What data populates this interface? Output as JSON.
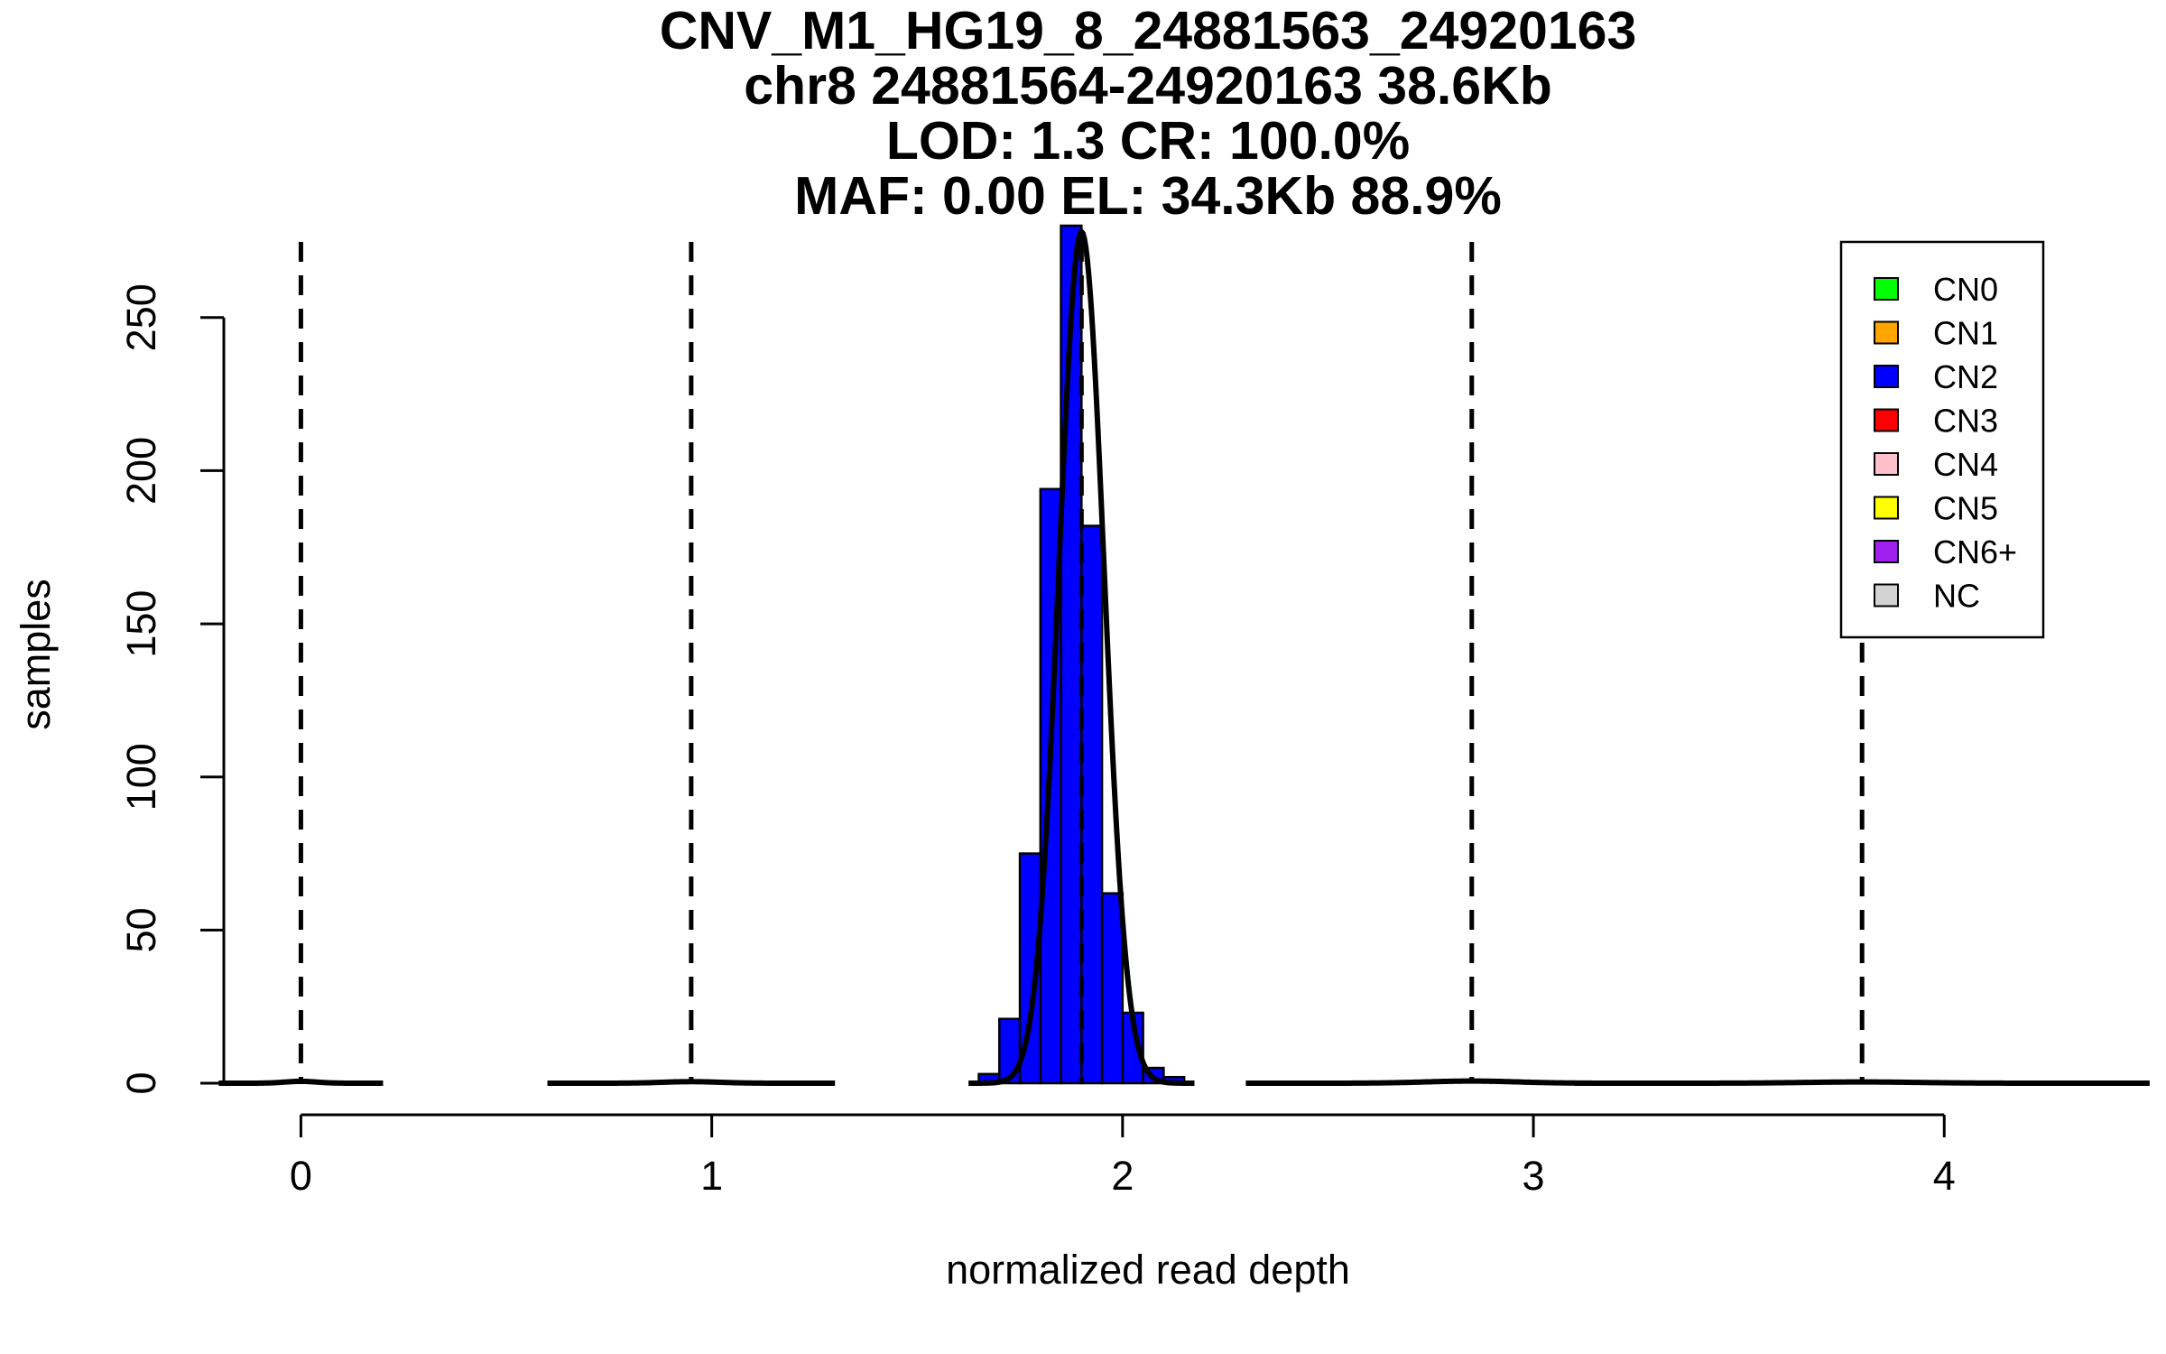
{
  "chart_data": {
    "type": "bar",
    "title_lines": [
      "CNV_M1_HG19_8_24881563_24920163",
      "chr8 24881564-24920163 38.6Kb",
      "LOD: 1.3 CR: 100.0%",
      "MAF: 0.00 EL: 34.3Kb 88.9%"
    ],
    "xlabel": "normalized read depth",
    "ylabel": "samples",
    "xlim": [
      -0.08,
      4.14
    ],
    "ylim": [
      0,
      280
    ],
    "x_ticks": [
      0,
      1,
      2,
      3,
      4
    ],
    "y_ticks": [
      0,
      50,
      100,
      150,
      200,
      250
    ],
    "bin_width": 0.05,
    "histogram": {
      "color": "#0000ff",
      "bins": [
        {
          "x0": 1.65,
          "count": 3
        },
        {
          "x0": 1.7,
          "count": 21
        },
        {
          "x0": 1.75,
          "count": 75
        },
        {
          "x0": 1.8,
          "count": 194
        },
        {
          "x0": 1.85,
          "count": 280
        },
        {
          "x0": 1.9,
          "count": 182
        },
        {
          "x0": 1.95,
          "count": 62
        },
        {
          "x0": 2.0,
          "count": 23
        },
        {
          "x0": 2.05,
          "count": 5
        },
        {
          "x0": 2.1,
          "count": 2
        }
      ]
    },
    "density_curves": [
      {
        "mean": 0.0,
        "height": 0.6,
        "sd": 0.04
      },
      {
        "mean": 0.95,
        "height": 0.5,
        "sd": 0.07
      },
      {
        "mean": 1.9,
        "height": 278,
        "sd": 0.055
      },
      {
        "mean": 2.85,
        "height": 0.7,
        "sd": 0.11
      },
      {
        "mean": 3.8,
        "height": 0.4,
        "sd": 0.14
      }
    ],
    "dashed_lines_x": [
      0.0,
      0.95,
      1.9,
      2.85,
      3.8
    ],
    "legend": {
      "position": "top-right",
      "items": [
        {
          "label": "CN0",
          "color": "#00ff00"
        },
        {
          "label": "CN1",
          "color": "#ffa500"
        },
        {
          "label": "CN2",
          "color": "#0000ff"
        },
        {
          "label": "CN3",
          "color": "#ff0000"
        },
        {
          "label": "CN4",
          "color": "#ffc0cb"
        },
        {
          "label": "CN5",
          "color": "#ffff00"
        },
        {
          "label": "CN6+",
          "color": "#a020f0"
        },
        {
          "label": "NC",
          "color": "#d3d3d3"
        }
      ]
    }
  }
}
